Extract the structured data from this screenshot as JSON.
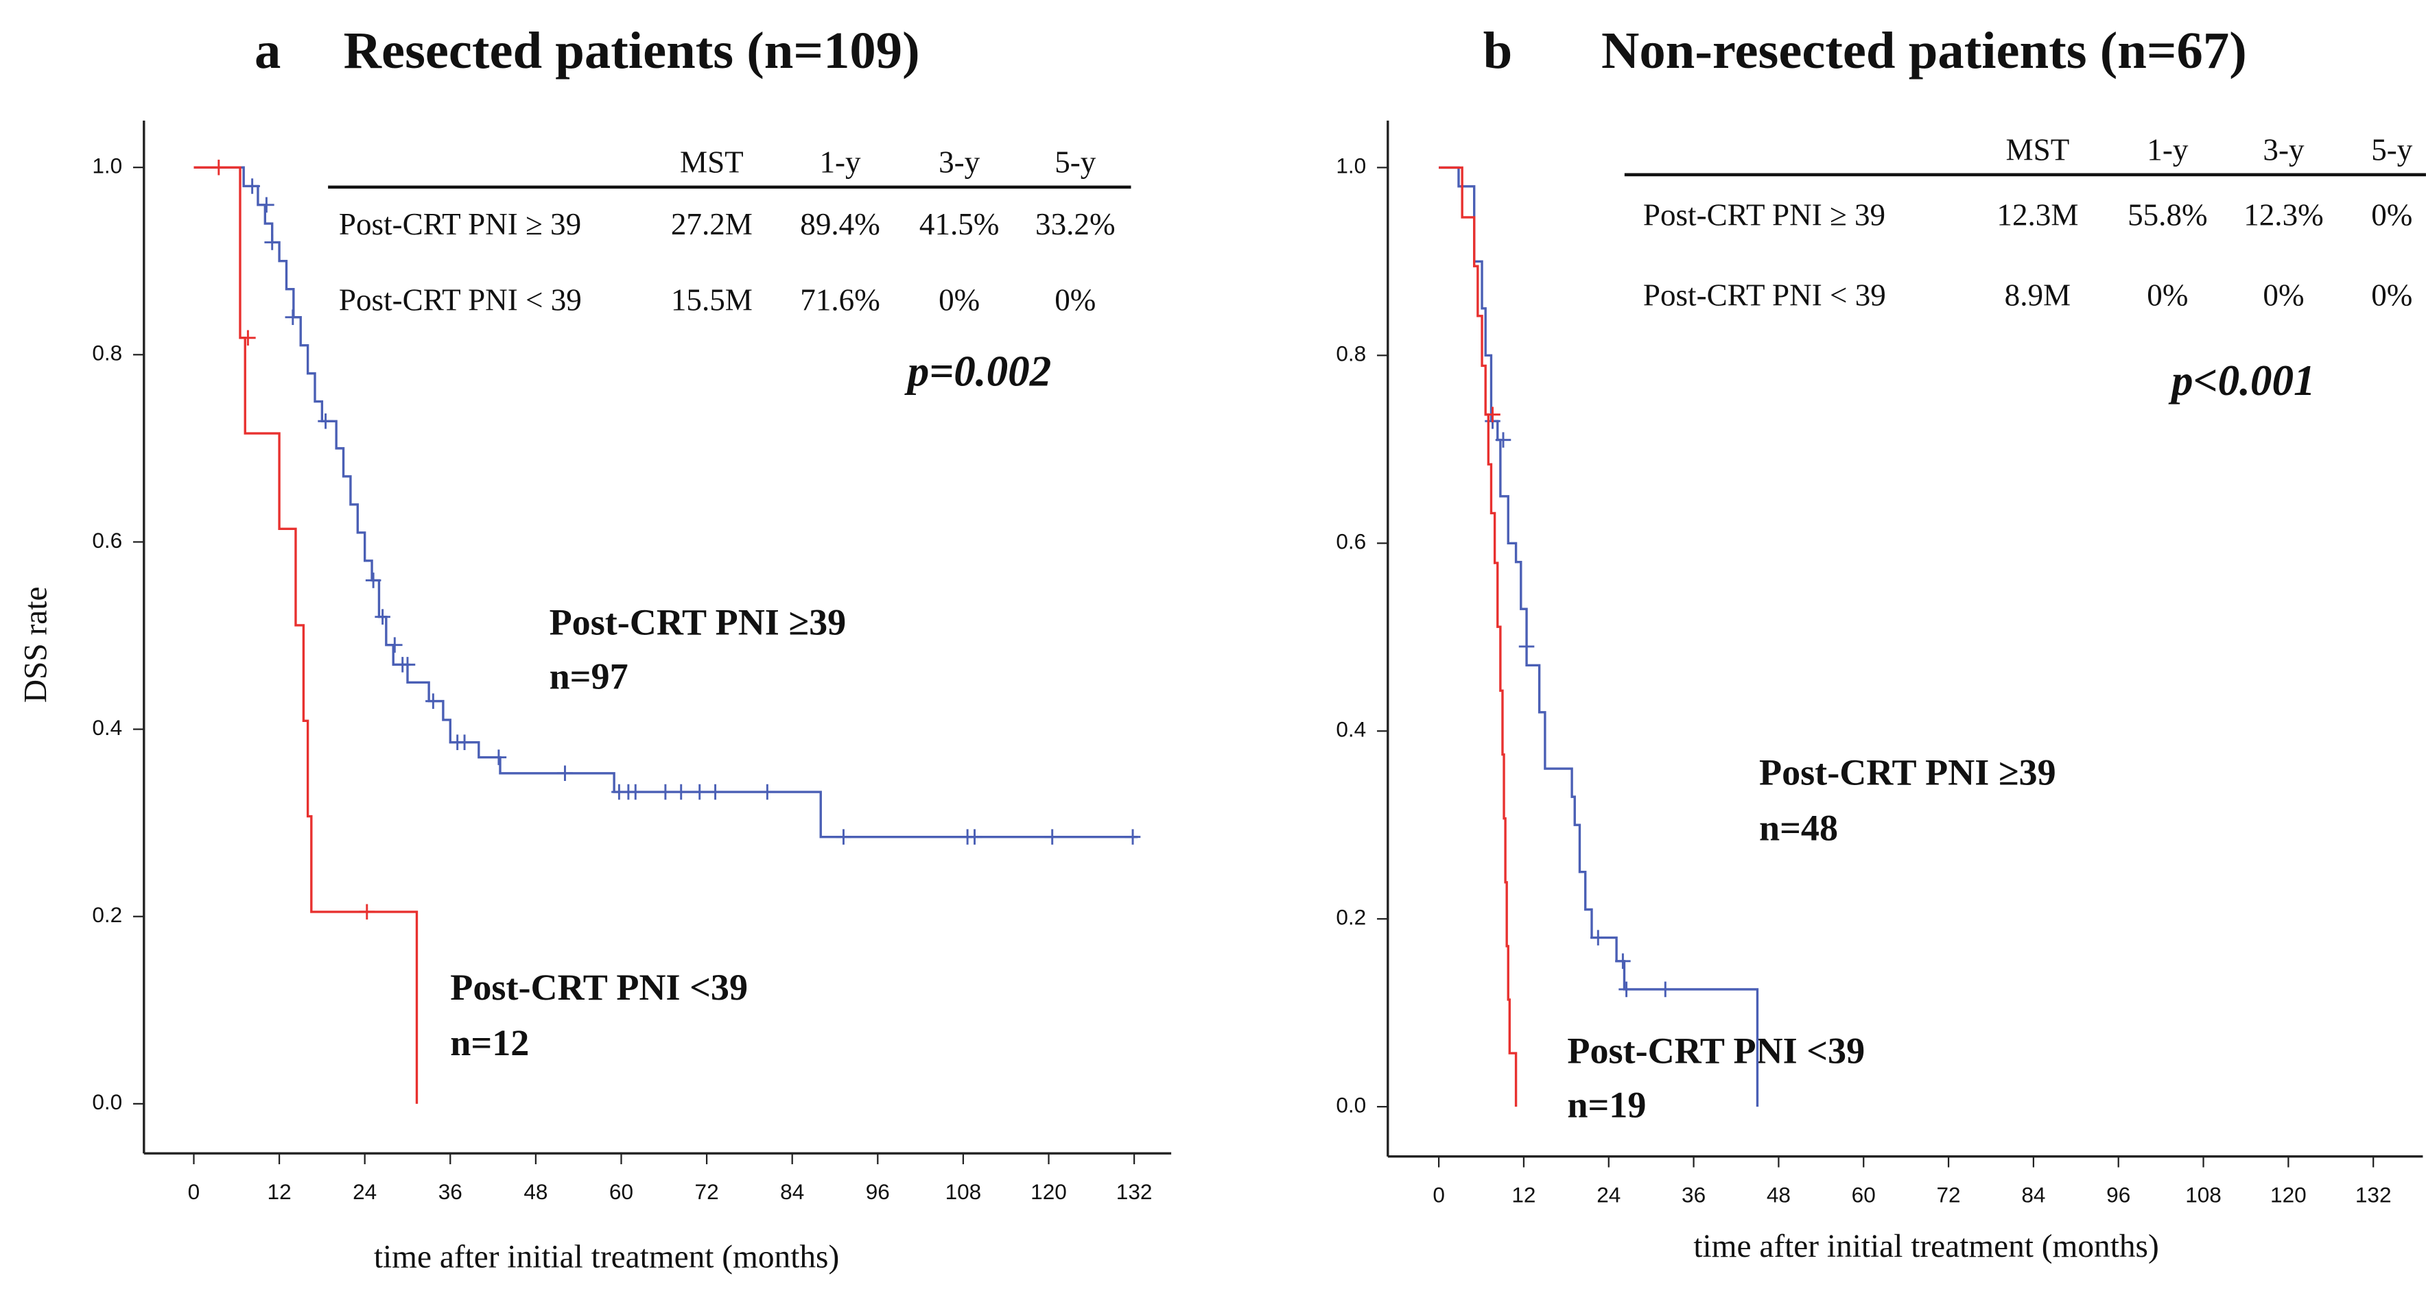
{
  "chart_data": [
    {
      "type": "line",
      "drawstyle": "steps-post",
      "panel": "a",
      "title": "Resected patients (n=109)",
      "x_label": "time after initial treatment (months)",
      "y_label": "DSS rate",
      "xlim": [
        -7,
        137.2
      ],
      "ylim": [
        -0.053,
        1.05
      ],
      "xticks": [
        0,
        12,
        24,
        36,
        48,
        60,
        72,
        84,
        96,
        108,
        120,
        132
      ],
      "yticks": [
        {
          "value": 0,
          "label": "0.0"
        },
        0.2,
        0.4,
        0.6,
        0.8,
        {
          "value": 1,
          "label": "1.0"
        }
      ],
      "table": {
        "columns": [
          "MST",
          "1-y",
          "3-y",
          "5-y"
        ],
        "rows": [
          [
            "Post-CRT PNI ≥ 39",
            "27.2M",
            "89.4%",
            "41.5%",
            "33.2%"
          ],
          [
            "Post-CRT PNI < 39",
            "15.5M",
            "71.6%",
            "0%",
            "0%"
          ]
        ]
      },
      "p_value": "p=0.002",
      "annotations": [
        "Post-CRT PNI  ≥39",
        "n=97",
        "Post-CRT PNI <39",
        "n=12"
      ],
      "series": [
        {
          "color": "#4a5fb5",
          "x": [
            0,
            7,
            9,
            10,
            11,
            12,
            13,
            14,
            15,
            16,
            17,
            18,
            20,
            21,
            22,
            23,
            24,
            25,
            26,
            27,
            28,
            30,
            33,
            35,
            36,
            40,
            43,
            59,
            88,
            132.5
          ],
          "values": [
            1,
            0.98,
            0.96,
            0.94,
            0.92,
            0.9,
            0.87,
            0.84,
            0.81,
            0.78,
            0.75,
            0.729,
            0.7,
            0.67,
            0.64,
            0.61,
            0.58,
            0.559,
            0.52,
            0.49,
            0.469,
            0.45,
            0.43,
            0.41,
            0.386,
            0.37,
            0.353,
            0.333,
            0.285,
            0.285
          ],
          "censored_x": [
            8.2,
            10.2,
            11,
            13.9,
            18.5,
            25.2,
            26.5,
            28.2,
            29.3,
            30,
            33.6,
            37,
            38,
            42.8,
            52.1,
            59.7,
            61,
            62,
            66.2,
            68.4,
            71,
            73.2,
            80.5,
            91.2,
            108.6,
            109.6,
            120.5,
            131.8
          ],
          "censored_values": [
            0.98,
            0.96,
            0.92,
            0.84,
            0.729,
            0.559,
            0.52,
            0.49,
            0.469,
            0.469,
            0.43,
            0.386,
            0.386,
            0.37,
            0.353,
            0.333,
            0.333,
            0.333,
            0.333,
            0.333,
            0.333,
            0.333,
            0.333,
            0.285,
            0.285,
            0.285,
            0.285,
            0.285
          ]
        },
        {
          "color": "#e8312f",
          "x": [
            0,
            6.5,
            7.2,
            12,
            14.3,
            15.4,
            16,
            16.5,
            31.3
          ],
          "values": [
            1,
            0.818,
            0.716,
            0.614,
            0.511,
            0.409,
            0.307,
            0.205,
            0
          ],
          "censored_x": [
            3.5,
            7.6,
            24.3
          ],
          "censored_values": [
            1,
            0.818,
            0.205
          ]
        }
      ]
    },
    {
      "type": "line",
      "drawstyle": "steps-post",
      "panel": "b",
      "title": "Non-resected patients (n=67)",
      "x_label": "time after initial treatment (months)",
      "xlim": [
        -7.2,
        139
      ],
      "ylim": [
        -0.053,
        1.05
      ],
      "xticks": [
        0,
        12,
        24,
        36,
        48,
        60,
        72,
        84,
        96,
        108,
        120,
        132
      ],
      "yticks": [
        {
          "value": 0,
          "label": "0.0"
        },
        0.2,
        0.4,
        0.6,
        0.8,
        {
          "value": 1,
          "label": "1.0"
        }
      ],
      "table": {
        "columns": [
          "MST",
          "1-y",
          "3-y",
          "5-y"
        ],
        "rows": [
          [
            "Post-CRT PNI ≥ 39",
            "12.3M",
            "55.8%",
            "12.3%",
            "0%"
          ],
          [
            "Post-CRT PNI < 39",
            "8.9M",
            "0%",
            "0%",
            "0%"
          ]
        ]
      },
      "p_value": "p<0.001",
      "annotations": [
        "Post-CRT PNI  ≥39",
        "n=48",
        "Post-CRT PNI <39",
        "n=19"
      ],
      "series": [
        {
          "color": "#4a5fb5",
          "x": [
            0,
            2.8,
            5,
            6.1,
            6.6,
            7.4,
            8.3,
            8.7,
            9.8,
            10.9,
            11.6,
            12.4,
            14.2,
            15,
            18.8,
            19.2,
            19.9,
            20.7,
            21.6,
            25.1,
            26.2,
            45
          ],
          "values": [
            1,
            0.98,
            0.9,
            0.85,
            0.8,
            0.73,
            0.71,
            0.65,
            0.6,
            0.58,
            0.53,
            0.47,
            0.42,
            0.36,
            0.33,
            0.3,
            0.25,
            0.21,
            0.18,
            0.155,
            0.125,
            0
          ],
          "censored_x": [
            7.6,
            9.1,
            12.4,
            22.5,
            26,
            26.5,
            32
          ],
          "censored_values": [
            0.73,
            0.71,
            0.49,
            0.18,
            0.155,
            0.125,
            0.125
          ]
        },
        {
          "color": "#e8312f",
          "x": [
            0,
            3.3,
            5,
            5.5,
            6.1,
            6.6,
            7,
            7.4,
            7.9,
            8.3,
            8.7,
            9,
            9.2,
            9.4,
            9.6,
            9.8,
            10,
            10.5,
            10.9
          ],
          "values": [
            1,
            0.947,
            0.895,
            0.842,
            0.789,
            0.737,
            0.684,
            0.632,
            0.579,
            0.511,
            0.443,
            0.375,
            0.307,
            0.239,
            0.171,
            0.114,
            0.057,
            0.057,
            0
          ],
          "censored_x": [
            7.6
          ],
          "censored_values": [
            0.737
          ]
        }
      ]
    }
  ]
}
